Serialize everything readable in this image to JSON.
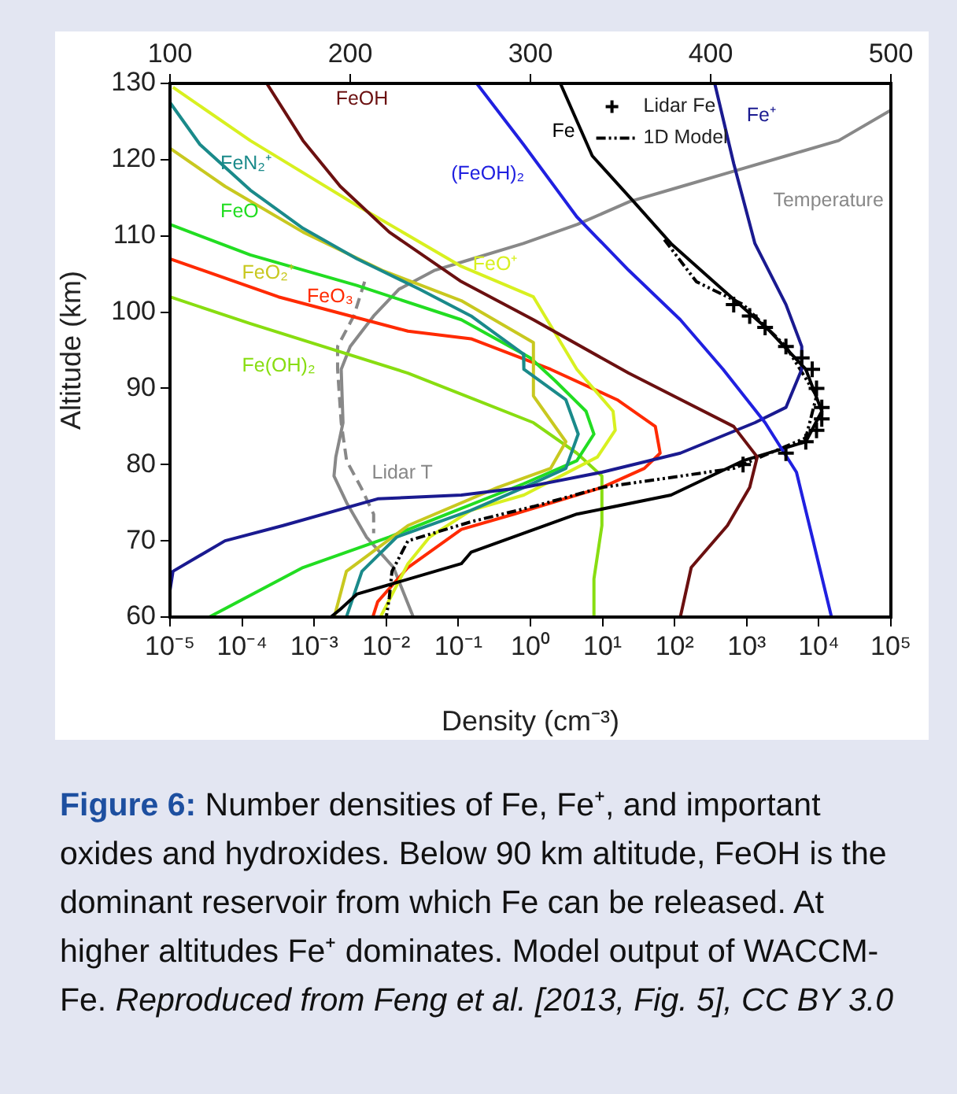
{
  "chart_data": {
    "type": "line",
    "xlabel": "Density (cm⁻³)",
    "ylabel": "Altitude (km)",
    "log": "x",
    "grid": false,
    "legend": "top right",
    "marker": "none",
    "line_style": "solid",
    "xlim": [
      1e-05,
      100000
    ],
    "xticks": [
      {
        "value": 1e-05,
        "label": "10⁻⁵"
      },
      {
        "value": 0.0001,
        "label": "10⁻⁴"
      },
      {
        "value": 0.001,
        "label": "10⁻³"
      },
      {
        "value": 0.01,
        "label": "10⁻²"
      },
      {
        "value": 0.1,
        "label": "10⁻¹"
      },
      {
        "value": 1,
        "label": "10⁰"
      },
      {
        "value": 10,
        "label": "10¹"
      },
      {
        "value": 100,
        "label": "10²"
      },
      {
        "value": 1000,
        "label": "10³"
      },
      {
        "value": 10000,
        "label": "10⁴"
      },
      {
        "value": 100000,
        "label": "10⁵"
      }
    ],
    "x2lim": [
      100,
      500
    ],
    "x2ticks": [
      100,
      200,
      300,
      400,
      500
    ],
    "ylim": [
      60,
      130
    ],
    "yticks": [
      60,
      70,
      80,
      90,
      100,
      110,
      120,
      130
    ],
    "series": [
      {
        "name": "FeOH",
        "color": "#6b1010",
        "x": [
          0.00022,
          0.0007,
          0.0023,
          0.011,
          0.11,
          1.1,
          23,
          660,
          1400,
          1100,
          540,
          170,
          120
        ],
        "values": [
          130,
          122.5,
          116.5,
          110.5,
          104,
          99,
          92,
          85,
          81,
          77,
          72,
          66.5,
          60
        ]
      },
      {
        "name": "(FeOH)₂",
        "color": "#2020e0",
        "x": [
          0.18,
          0.8,
          4.4,
          23,
          120,
          470,
          1800,
          4900,
          8100,
          15000
        ],
        "values": [
          130,
          122,
          112.5,
          105.5,
          99,
          92.5,
          85.5,
          79,
          70.5,
          60
        ]
      },
      {
        "name": "Fe",
        "color": "#000000",
        "x": [
          2.6,
          7.2,
          27,
          89,
          400,
          2100,
          6600,
          11000,
          6600,
          890,
          89,
          4.4,
          0.15,
          0.11,
          0.0039,
          0.0023,
          0.0017
        ],
        "values": [
          130,
          120.5,
          114.5,
          109,
          103.5,
          97.5,
          92.5,
          87,
          83,
          80.5,
          76,
          73.5,
          68.5,
          67,
          63,
          61,
          60
        ]
      },
      {
        "name": "Fe⁺",
        "color": "#1a1a90",
        "x": [
          360,
          660,
          1300,
          3500,
          5800,
          5800,
          3500,
          1300,
          120,
          9.8,
          0.81,
          0.11,
          0.0076,
          0.00037,
          5.8e-05,
          1.1e-05,
          1e-05
        ],
        "values": [
          130,
          119.5,
          109,
          101,
          95.5,
          92.5,
          87.5,
          85.5,
          81.5,
          79,
          77,
          76,
          75.5,
          72,
          70,
          66,
          63.5
        ]
      },
      {
        "name": "Lidar Fe",
        "type": "scatter",
        "marker": "cross",
        "color": "#000000",
        "x": [
          660,
          1100,
          1800,
          3500,
          5800,
          8100,
          9300,
          11000,
          11000,
          9300,
          6600,
          3500,
          890
        ],
        "values": [
          101,
          99.5,
          98,
          95.5,
          94,
          92.5,
          90,
          87.5,
          86,
          84.5,
          83,
          81.5,
          80
        ]
      },
      {
        "name": "1D Model",
        "line_style": "dotted",
        "color": "#000000",
        "x": [
          72,
          200,
          890,
          3500,
          9300,
          6600,
          660,
          9.8,
          1.1,
          0.15,
          0.02,
          0.012,
          0.011,
          0.01
        ],
        "values": [
          109.5,
          104,
          101,
          95.5,
          89,
          83.5,
          79.5,
          77,
          74.5,
          72.5,
          70,
          66,
          62.5,
          60
        ]
      },
      {
        "name": "FeN₂⁺",
        "color": "#1a8a8a",
        "x": [
          1e-05,
          2.6e-05,
          0.00013,
          0.0007,
          0.0039,
          0.029,
          0.15,
          0.8,
          0.81,
          3.1,
          4.6,
          3.1,
          0.81,
          0.15,
          0.014,
          0.0046,
          0.0028
        ],
        "values": [
          127.5,
          122,
          116,
          111,
          107,
          103,
          99.5,
          94.5,
          92.5,
          88.5,
          84,
          79.5,
          77,
          74,
          70.5,
          66,
          60
        ]
      },
      {
        "name": "FeO₂⁺",
        "color": "#c8c820",
        "x": [
          1e-05,
          5.8e-05,
          0.0007,
          0.0087,
          0.11,
          1.1,
          1.1,
          3.1,
          1.9,
          0.35,
          0.02,
          0.0028,
          0.0019
        ],
        "values": [
          121.5,
          116.5,
          110.5,
          105.5,
          101.5,
          96,
          89,
          83,
          79.5,
          77,
          72,
          66,
          60
        ]
      },
      {
        "name": "FeO⁺",
        "color": "#d8f020",
        "x": [
          1.1e-05,
          0.00013,
          0.0039,
          0.11,
          1.1,
          4.4,
          14,
          15,
          8.5,
          0.81,
          0.15,
          0.04,
          0.02,
          0.0083
        ],
        "values": [
          129.5,
          122.5,
          114,
          106,
          102,
          92.5,
          87,
          84.5,
          81,
          76,
          74,
          70.5,
          67,
          60
        ]
      },
      {
        "name": "FeO",
        "color": "#22dd22",
        "x": [
          1e-05,
          0.00013,
          0.0039,
          0.11,
          1,
          2.2,
          5.9,
          7.6,
          4.4,
          0.81,
          0.011,
          0.0007,
          3.5e-05
        ],
        "values": [
          111.5,
          107.5,
          103.5,
          99,
          94,
          91,
          87,
          84,
          80.5,
          77.5,
          70.5,
          66.5,
          60
        ]
      },
      {
        "name": "FeO₃",
        "color": "#ff2a00",
        "x": [
          1e-05,
          0.00032,
          0.02,
          0.15,
          1.9,
          16,
          54,
          63,
          38,
          9.8,
          0.59,
          0.11,
          0.02,
          0.0076,
          0.0065
        ],
        "values": [
          107,
          102,
          97.5,
          96.5,
          92.5,
          88.5,
          85,
          81.5,
          79.5,
          77,
          73.5,
          71.5,
          66.5,
          62,
          60
        ]
      },
      {
        "name": "Fe(OH)₂",
        "color": "#88dd11",
        "x": [
          1e-05,
          0.00013,
          0.02,
          1.1,
          4.4,
          9.8,
          9.8,
          7.6,
          7.6
        ],
        "values": [
          102,
          98.5,
          92,
          85.5,
          81.5,
          78.5,
          72,
          65,
          60
        ]
      },
      {
        "name": "Temperature",
        "axis": "x2",
        "color": "#888888",
        "x": [
          500,
          471,
          442,
          413,
          384,
          355,
          326,
          296,
          268,
          247,
          227,
          213,
          200,
          195,
          196,
          192,
          191,
          198,
          209,
          224,
          235
        ],
        "values": [
          126.5,
          122.5,
          120.5,
          118.5,
          116.5,
          114.5,
          111.5,
          109,
          107,
          105.5,
          103,
          99.5,
          95.5,
          92.5,
          85.5,
          81,
          78.5,
          75,
          70.5,
          66.5,
          60
        ]
      },
      {
        "name": "Lidar T",
        "axis": "x2",
        "line_style": "dashed",
        "color": "#888888",
        "x": [
          208,
          202,
          193,
          193,
          195,
          198,
          206,
          213,
          213
        ],
        "values": [
          104,
          99.5,
          95.5,
          92.5,
          85.5,
          80.5,
          77,
          73.5,
          71
        ]
      }
    ],
    "annotations": [
      "Figure 6:",
      "Number densities of Fe, Fe⁺, and important oxides and hydroxides. Below 90 km altitude, FeOH is the dominant reservoir from which Fe can be released. At higher altitudes Fe⁺ dominates. Model output of WACCM-Fe.",
      "Reproduced from Feng et al. [2013, Fig. 5], CC BY 3.0"
    ]
  }
}
